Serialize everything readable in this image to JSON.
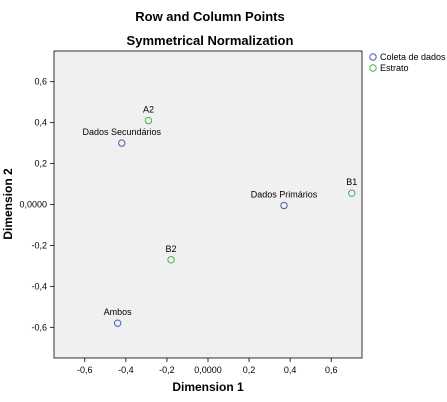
{
  "chart_data": {
    "type": "scatter",
    "title": "Row and Column Points",
    "subtitle": "Symmetrical Normalization",
    "xlabel": "Dimension 1",
    "ylabel": "Dimension 2",
    "xlim": [
      -0.75,
      0.75
    ],
    "ylim": [
      -0.75,
      0.75
    ],
    "xticks": [
      -0.6,
      -0.4,
      -0.2,
      0.0,
      0.2,
      0.4,
      0.6
    ],
    "xtick_labels": [
      "-0,6",
      "-0,4",
      "-0,2",
      "0,0000",
      "0,2",
      "0,4",
      "0,6"
    ],
    "yticks": [
      0.6,
      0.4,
      0.2,
      0.0,
      -0.2,
      -0.4,
      -0.6
    ],
    "ytick_labels": [
      "0,6",
      "0,4",
      "0,2",
      "0,0000",
      "-0,2",
      "-0,4",
      "-0,6"
    ],
    "grid": false,
    "legend_position": "top-right",
    "series": [
      {
        "name": "Coleta de dados",
        "color": "#4a5fb0",
        "points": [
          {
            "label": "Dados Secundários",
            "x": -0.42,
            "y": 0.3
          },
          {
            "label": "Dados Primários",
            "x": 0.37,
            "y": -0.005
          },
          {
            "label": "Ambos",
            "x": -0.44,
            "y": -0.58
          }
        ]
      },
      {
        "name": "Estrato",
        "color": "#4ab04a",
        "points": [
          {
            "label": "A2",
            "x": -0.29,
            "y": 0.41
          },
          {
            "label": "B1",
            "x": 0.7,
            "y": 0.055
          },
          {
            "label": "B2",
            "x": -0.18,
            "y": -0.27
          }
        ]
      }
    ]
  }
}
